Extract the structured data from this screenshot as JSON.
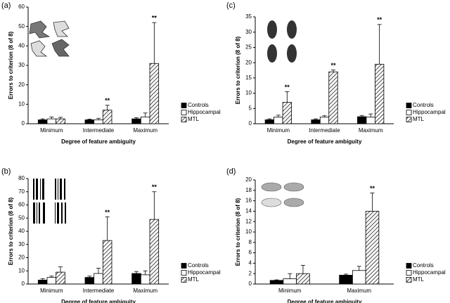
{
  "chart_data": [
    {
      "type": "bar",
      "panel": "(a)",
      "xlabel": "Degree of feature ambiguity",
      "ylabel": "Errors to criterion (8 of 8)",
      "categories": [
        "Minimum",
        "Intermediate",
        "Maximum"
      ],
      "ylim": [
        0,
        60
      ],
      "yticks": [
        0,
        10,
        20,
        30,
        40,
        50,
        60
      ],
      "series": [
        {
          "name": "Controls",
          "color": "#000000",
          "values": [
            2,
            2,
            2.5
          ],
          "errors": [
            0.5,
            0.4,
            0.6
          ]
        },
        {
          "name": "Hippocampal",
          "color": "#ffffff",
          "values": [
            2.5,
            2,
            3.5
          ],
          "errors": [
            1,
            0.8,
            2
          ]
        },
        {
          "name": "MTL",
          "color": "#ffffff",
          "hatch": true,
          "values": [
            2.5,
            7,
            31
          ],
          "errors": [
            0.8,
            2.5,
            21
          ],
          "annotations": [
            null,
            "**",
            "**"
          ]
        }
      ]
    },
    {
      "type": "bar",
      "panel": "(b)",
      "xlabel": "Degree of feature ambiguity",
      "ylabel": "Errors to criterion (8 of 8)",
      "categories": [
        "Minimum",
        "Intermediate",
        "Maximum"
      ],
      "ylim": [
        0,
        80
      ],
      "yticks": [
        0,
        10,
        20,
        30,
        40,
        50,
        60,
        70,
        80
      ],
      "series": [
        {
          "name": "Controls",
          "color": "#000000",
          "values": [
            3,
            5,
            8
          ],
          "errors": [
            1,
            1,
            1.5
          ]
        },
        {
          "name": "Hippocampal",
          "color": "#ffffff",
          "values": [
            5,
            8,
            7
          ],
          "errors": [
            1,
            4,
            3
          ]
        },
        {
          "name": "MTL",
          "color": "#ffffff",
          "hatch": true,
          "values": [
            9,
            33,
            49
          ],
          "errors": [
            4,
            18,
            21
          ],
          "annotations": [
            null,
            "**",
            "**"
          ]
        }
      ]
    },
    {
      "type": "bar",
      "panel": "(c)",
      "xlabel": "Degree of feature ambiguity",
      "ylabel": "Errors to criterion (8 of 8)",
      "categories": [
        "Minimum",
        "Intermediate",
        "Maximum"
      ],
      "ylim": [
        0,
        35
      ],
      "yticks": [
        0,
        5,
        10,
        15,
        20,
        25,
        30,
        35
      ],
      "series": [
        {
          "name": "Controls",
          "color": "#000000",
          "values": [
            1.3,
            1.3,
            2.3
          ],
          "errors": [
            0.3,
            0.3,
            0.4
          ]
        },
        {
          "name": "Hippocampal",
          "color": "#ffffff",
          "values": [
            2.2,
            2.2,
            2.2
          ],
          "errors": [
            0.6,
            0.4,
            1
          ]
        },
        {
          "name": "MTL",
          "color": "#ffffff",
          "hatch": true,
          "values": [
            7,
            17,
            19.5
          ],
          "errors": [
            3.5,
            0.6,
            13
          ],
          "annotations": [
            "**",
            "**",
            "**"
          ]
        }
      ]
    },
    {
      "type": "bar",
      "panel": "(d)",
      "xlabel": "Degree of feature ambiguity",
      "ylabel": "Errors to criterion (8 of 8)",
      "categories": [
        "Minimum",
        "Maximum"
      ],
      "ylim": [
        0,
        20
      ],
      "yticks": [
        0,
        2,
        4,
        6,
        8,
        10,
        12,
        14,
        16,
        18,
        20
      ],
      "series": [
        {
          "name": "Controls",
          "color": "#000000",
          "values": [
            0.7,
            1.7
          ],
          "errors": [
            0.1,
            0.2
          ]
        },
        {
          "name": "Hippocampal",
          "color": "#ffffff",
          "values": [
            1.0,
            2.6
          ],
          "errors": [
            1.0,
            0.8
          ]
        },
        {
          "name": "MTL",
          "color": "#ffffff",
          "hatch": true,
          "values": [
            2.0,
            14
          ],
          "errors": [
            1.6,
            3.5
          ],
          "annotations": [
            null,
            "**"
          ]
        }
      ]
    }
  ]
}
